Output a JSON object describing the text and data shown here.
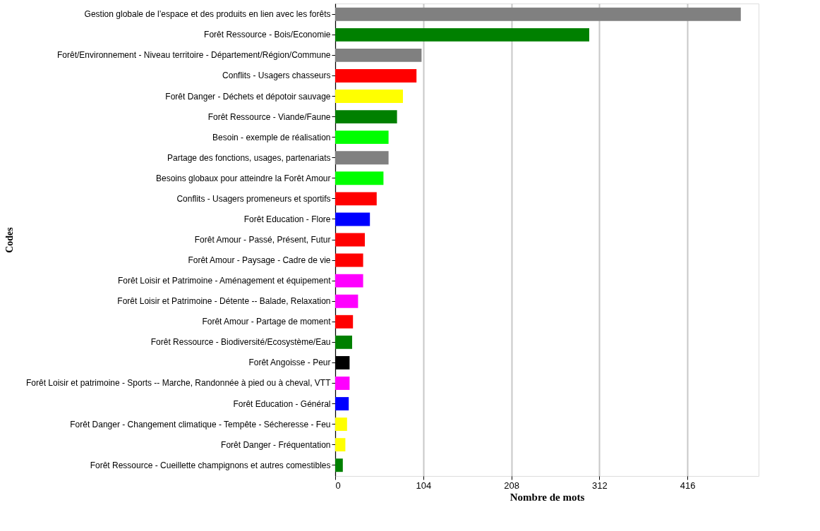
{
  "chart_data": {
    "type": "bar",
    "orientation": "horizontal",
    "xlabel": "Nombre de mots",
    "ylabel": "Codes",
    "categories": [
      "Gestion globale de l’espace et des produits en lien avec les forêts",
      "Forêt Ressource - Bois/Economie",
      "Forêt/Environnement - Niveau territoire - Département/Région/Commune",
      "Conflits - Usagers chasseurs",
      "Forêt Danger - Déchets et dépotoir sauvage",
      "Forêt Ressource - Viande/Faune",
      "Besoin - exemple de réalisation",
      "Partage des fonctions, usages, partenariats",
      "Besoins globaux pour atteindre la Forêt Amour",
      "Conflits - Usagers promeneurs et sportifs",
      "Forêt Education - Flore",
      "Forêt Amour - Passé, Présent, Futur",
      "Forêt Amour - Paysage - Cadre de vie",
      "Forêt Loisir et Patrimoine - Aménagement et équipement",
      "Forêt Loisir et Patrimoine - Détente -- Balade, Relaxation",
      "Forêt Amour - Partage de moment",
      "Forêt Ressource - Biodiversité/Ecosystème/Eau",
      "Forêt Angoisse - Peur",
      "Forêt Loisir et patrimoine - Sports -- Marche, Randonnée à pied ou à cheval, VTT",
      "Forêt Education - Général",
      "Forêt Danger - Changement  climatique - Tempête - Sécheresse - Feu",
      "Forêt Danger - Fréquentation",
      "Forêt Ressource - Cueillette champignons et autres comestibles"
    ],
    "values": [
      479,
      300,
      102,
      96,
      80,
      73,
      63,
      63,
      57,
      49,
      41,
      35,
      33,
      33,
      27,
      21,
      20,
      17,
      17,
      16,
      14,
      12,
      9
    ],
    "colors": [
      "#808080",
      "#008000",
      "#808080",
      "#ff0000",
      "#ffff00",
      "#008000",
      "#00ff00",
      "#808080",
      "#00ff00",
      "#ff0000",
      "#0000ff",
      "#ff0000",
      "#ff0000",
      "#ff00ff",
      "#ff00ff",
      "#ff0000",
      "#008000",
      "#000000",
      "#ff00ff",
      "#0000ff",
      "#ffff00",
      "#ffff00",
      "#008000"
    ],
    "xlim": [
      0,
      500
    ],
    "xticks": [
      0,
      104,
      208,
      312,
      416
    ],
    "grid": "x"
  }
}
